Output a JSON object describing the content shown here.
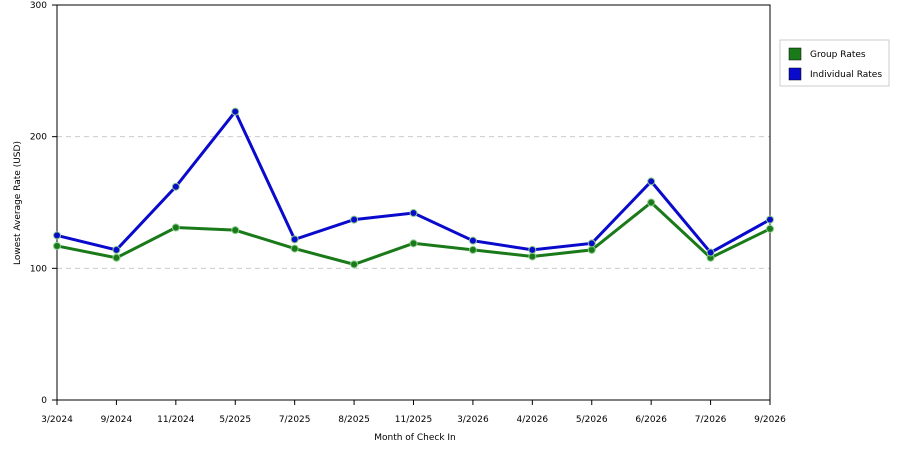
{
  "chart_data": {
    "type": "line",
    "x_label": "Month of Check In",
    "y_label": "Lowest Average Rate (USD)",
    "categories": [
      "3/2024",
      "9/2024",
      "11/2024",
      "5/2025",
      "7/2025",
      "8/2025",
      "11/2025",
      "3/2026",
      "4/2026",
      "5/2026",
      "6/2026",
      "7/2026",
      "9/2026"
    ],
    "series": [
      {
        "name": "Group Rates",
        "color": "#1a7a1a",
        "values": [
          117,
          108,
          131,
          129,
          115,
          103,
          119,
          114,
          109,
          114,
          150,
          108,
          130
        ]
      },
      {
        "name": "Individual Rates",
        "color": "#0a0acc",
        "values": [
          125,
          114,
          162,
          219,
          122,
          137,
          142,
          121,
          114,
          119,
          166,
          112,
          137
        ]
      }
    ],
    "ylim": [
      0,
      300
    ],
    "yticks": [
      0,
      100,
      200,
      300
    ],
    "grid": true,
    "legend": "top-right"
  }
}
